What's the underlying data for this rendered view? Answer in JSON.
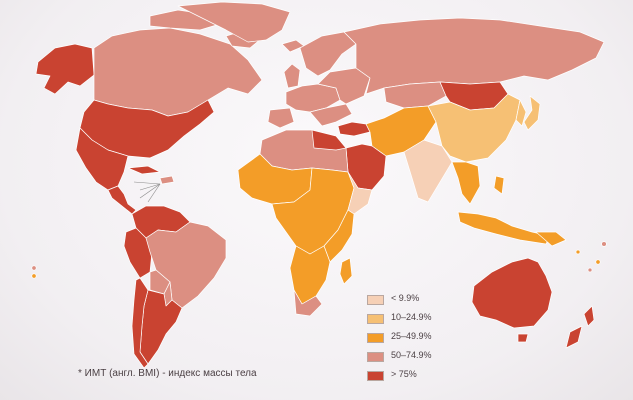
{
  "legend": {
    "items": [
      {
        "label": "< 9.9%",
        "color": "#f6d0b6"
      },
      {
        "label": "10–24.9%",
        "color": "#f6c074"
      },
      {
        "label": "25–49.9%",
        "color": "#f39d28"
      },
      {
        "label": "50–74.9%",
        "color": "#dc8f82"
      },
      {
        "label": "> 75%",
        "color": "#c94331"
      }
    ]
  },
  "footnote": "* ИМТ (англ. BMI) - индекс массы тела",
  "colors": {
    "background": "#f4f1f4",
    "border": "#ffffff",
    "level_1": "#f6d0b6",
    "level_2": "#f6c074",
    "level_3": "#f39d28",
    "level_4": "#dc8f82",
    "level_5": "#c94331"
  }
}
